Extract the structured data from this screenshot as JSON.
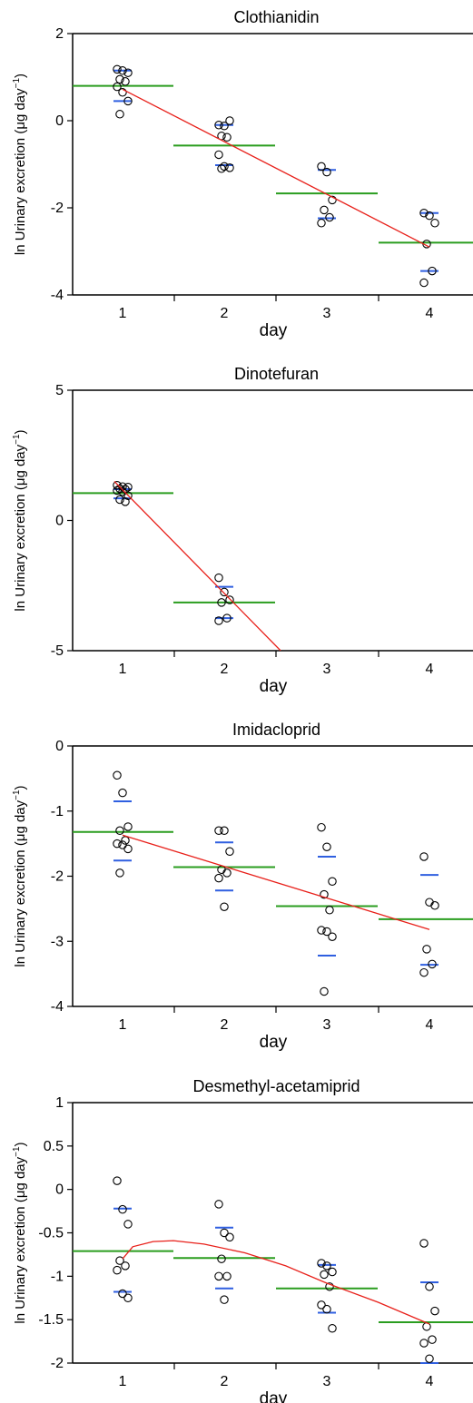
{
  "units": {
    "ylabel_base": "ln Urinary excretion (μg day",
    "ylabel_exp": "−1",
    "ylabel_close": ")"
  },
  "chart_data": [
    {
      "type": "scatter",
      "title": "Clothianidin",
      "xlabel": "day",
      "categories": [
        "1",
        "2",
        "3",
        "4"
      ],
      "ylim": [
        -4,
        2
      ],
      "yticks": [
        "2",
        "0",
        "-2",
        "-4"
      ],
      "ytick_values": [
        2,
        0,
        -2,
        -4
      ],
      "points": [
        [
          1,
          1.18
        ],
        [
          1,
          1.15
        ],
        [
          1,
          1.1
        ],
        [
          1,
          0.95
        ],
        [
          1,
          0.9
        ],
        [
          1,
          0.78
        ],
        [
          1,
          0.65
        ],
        [
          1,
          0.45
        ],
        [
          1,
          0.15
        ],
        [
          2,
          -0.1
        ],
        [
          2,
          -0.12
        ],
        [
          2,
          0.0
        ],
        [
          2,
          -0.35
        ],
        [
          2,
          -0.38
        ],
        [
          2,
          -0.78
        ],
        [
          2,
          -1.05
        ],
        [
          2,
          -1.08
        ],
        [
          2,
          -1.1
        ],
        [
          3,
          -1.05
        ],
        [
          3,
          -1.18
        ],
        [
          3,
          -1.82
        ],
        [
          3,
          -2.05
        ],
        [
          3,
          -2.22
        ],
        [
          3,
          -2.35
        ],
        [
          4,
          -2.12
        ],
        [
          4,
          -2.18
        ],
        [
          4,
          -2.35
        ],
        [
          4,
          -2.83
        ],
        [
          4,
          -3.45
        ],
        [
          4,
          -3.72
        ]
      ],
      "mean": [
        0.8,
        -0.57,
        -1.67,
        -2.8
      ],
      "ci_upper": [
        1.15,
        -0.1,
        -1.13,
        -2.12
      ],
      "ci_lower": [
        0.45,
        -1.02,
        -2.24,
        -3.45
      ],
      "trend": [
        [
          1,
          0.72
        ],
        [
          4,
          -2.9
        ]
      ],
      "colors": {
        "mean": "#2a9d1f",
        "ci": "#2f5fe0",
        "trend": "#e8201a",
        "points": "#000000"
      }
    },
    {
      "type": "scatter",
      "title": "Dinotefuran",
      "xlabel": "day",
      "categories": [
        "1",
        "2",
        "3",
        "4"
      ],
      "ylim": [
        -5,
        5
      ],
      "yticks": [
        "5",
        "0",
        "-5"
      ],
      "ytick_values": [
        5,
        0,
        -5
      ],
      "points": [
        [
          1,
          1.35
        ],
        [
          1,
          1.3
        ],
        [
          1,
          1.28
        ],
        [
          1,
          1.22
        ],
        [
          1,
          1.2
        ],
        [
          1,
          1.15
        ],
        [
          1,
          1.1
        ],
        [
          1,
          0.95
        ],
        [
          1,
          0.8
        ],
        [
          1,
          0.72
        ],
        [
          2,
          -2.2
        ],
        [
          2,
          -2.75
        ],
        [
          2,
          -3.05
        ],
        [
          2,
          -3.15
        ],
        [
          2,
          -3.75
        ],
        [
          2,
          -3.85
        ]
      ],
      "mean": [
        1.05,
        -3.15,
        null,
        null
      ],
      "ci_upper": [
        1.2,
        -2.55,
        null,
        null
      ],
      "ci_lower": [
        0.85,
        -3.75,
        null,
        null
      ],
      "trend": [
        [
          0.92,
          1.5
        ],
        [
          2.55,
          -5.0
        ]
      ],
      "colors": {
        "mean": "#2a9d1f",
        "ci": "#2f5fe0",
        "trend": "#e8201a",
        "points": "#000000"
      }
    },
    {
      "type": "scatter",
      "title": "Imidacloprid",
      "xlabel": "day",
      "categories": [
        "1",
        "2",
        "3",
        "4"
      ],
      "ylim": [
        -4,
        0
      ],
      "yticks": [
        "0",
        "-1",
        "-2",
        "-3",
        "-4"
      ],
      "ytick_values": [
        0,
        -1,
        -2,
        -3,
        -4
      ],
      "points": [
        [
          1,
          -0.45
        ],
        [
          1,
          -0.72
        ],
        [
          1,
          -1.24
        ],
        [
          1,
          -1.3
        ],
        [
          1,
          -1.45
        ],
        [
          1,
          -1.5
        ],
        [
          1,
          -1.52
        ],
        [
          1,
          -1.58
        ],
        [
          1,
          -1.95
        ],
        [
          2,
          -1.3
        ],
        [
          2,
          -1.3
        ],
        [
          2,
          -1.62
        ],
        [
          2,
          -1.9
        ],
        [
          2,
          -1.95
        ],
        [
          2,
          -2.03
        ],
        [
          2,
          -2.47
        ],
        [
          3,
          -1.25
        ],
        [
          3,
          -1.55
        ],
        [
          3,
          -2.08
        ],
        [
          3,
          -2.28
        ],
        [
          3,
          -2.52
        ],
        [
          3,
          -2.83
        ],
        [
          3,
          -2.85
        ],
        [
          3,
          -2.93
        ],
        [
          3,
          -3.77
        ],
        [
          4,
          -1.7
        ],
        [
          4,
          -2.4
        ],
        [
          4,
          -2.45
        ],
        [
          4,
          -3.12
        ],
        [
          4,
          -3.35
        ],
        [
          4,
          -3.48
        ]
      ],
      "mean": [
        -1.32,
        -1.86,
        -2.46,
        -2.66
      ],
      "ci_upper": [
        -0.85,
        -1.48,
        -1.7,
        -1.98
      ],
      "ci_lower": [
        -1.76,
        -2.22,
        -3.22,
        -3.36
      ],
      "trend": [
        [
          1,
          -1.37
        ],
        [
          4,
          -2.82
        ]
      ],
      "colors": {
        "mean": "#2a9d1f",
        "ci": "#2f5fe0",
        "trend": "#e8201a",
        "points": "#000000"
      }
    },
    {
      "type": "scatter",
      "title": "Desmethyl-acetamiprid",
      "xlabel": "day",
      "categories": [
        "1",
        "2",
        "3",
        "4"
      ],
      "ylim": [
        -2,
        1
      ],
      "yticks": [
        "1",
        "0.5",
        "0",
        "-0.5",
        "-1",
        "-1.5",
        "-2"
      ],
      "ytick_values": [
        1,
        0.5,
        0,
        -0.5,
        -1,
        -1.5,
        -2
      ],
      "points": [
        [
          1,
          0.1
        ],
        [
          1,
          -0.23
        ],
        [
          1,
          -0.4
        ],
        [
          1,
          -0.82
        ],
        [
          1,
          -0.88
        ],
        [
          1,
          -0.93
        ],
        [
          1,
          -1.2
        ],
        [
          1,
          -1.25
        ],
        [
          2,
          -0.17
        ],
        [
          2,
          -0.5
        ],
        [
          2,
          -0.55
        ],
        [
          2,
          -0.8
        ],
        [
          2,
          -1.0
        ],
        [
          2,
          -1.0
        ],
        [
          2,
          -1.27
        ],
        [
          3,
          -0.85
        ],
        [
          3,
          -0.88
        ],
        [
          3,
          -0.95
        ],
        [
          3,
          -0.98
        ],
        [
          3,
          -1.12
        ],
        [
          3,
          -1.33
        ],
        [
          3,
          -1.38
        ],
        [
          3,
          -1.6
        ],
        [
          4,
          -0.62
        ],
        [
          4,
          -1.12
        ],
        [
          4,
          -1.4
        ],
        [
          4,
          -1.58
        ],
        [
          4,
          -1.73
        ],
        [
          4,
          -1.77
        ],
        [
          4,
          -1.95
        ]
      ],
      "mean": [
        -0.71,
        -0.79,
        -1.14,
        -1.53
      ],
      "ci_upper": [
        -0.22,
        -0.44,
        -0.87,
        -1.07
      ],
      "ci_lower": [
        -1.18,
        -1.14,
        -1.42,
        -2.0
      ],
      "trend": [
        [
          1.0,
          -0.8
        ],
        [
          1.1,
          -0.66
        ],
        [
          1.3,
          -0.6
        ],
        [
          1.5,
          -0.59
        ],
        [
          1.8,
          -0.63
        ],
        [
          2.2,
          -0.73
        ],
        [
          2.6,
          -0.88
        ],
        [
          3.0,
          -1.08
        ],
        [
          3.5,
          -1.3
        ],
        [
          4.0,
          -1.55
        ]
      ],
      "colors": {
        "mean": "#2a9d1f",
        "ci": "#2f5fe0",
        "trend": "#e8201a",
        "points": "#000000"
      }
    }
  ]
}
